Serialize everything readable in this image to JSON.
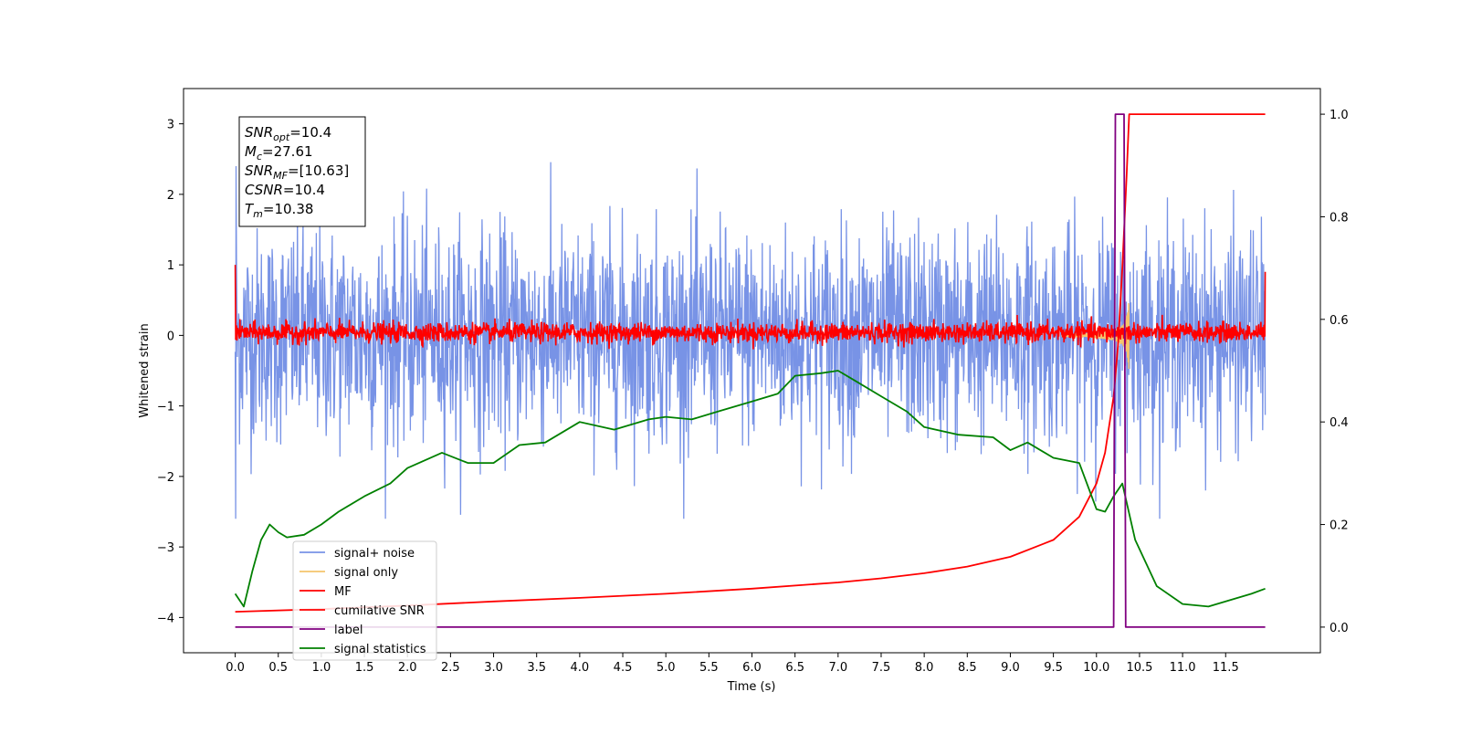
{
  "chart_data": {
    "type": "line",
    "xlabel": "Time (s)",
    "ylabel": "Whitened strain",
    "xlim": [
      -0.6,
      12.6
    ],
    "ylim": [
      -4.5,
      3.5
    ],
    "y2lim": [
      -0.05,
      1.05
    ],
    "x_ticks": [
      0.0,
      0.5,
      1.0,
      1.5,
      2.0,
      2.5,
      3.0,
      3.5,
      4.0,
      4.5,
      5.0,
      5.5,
      6.0,
      6.5,
      7.0,
      7.5,
      8.0,
      8.5,
      9.0,
      9.5,
      10.0,
      10.5,
      11.0,
      11.5
    ],
    "x_tick_labels": [
      "0.0",
      "0.5",
      "1.0",
      "1.5",
      "2.0",
      "2.5",
      "3.0",
      "3.5",
      "4.0",
      "4.5",
      "5.0",
      "5.5",
      "6.0",
      "6.5",
      "7.0",
      "7.5",
      "8.0",
      "8.5",
      "9.0",
      "9.5",
      "10.0",
      "10.5",
      "11.0",
      "11.5"
    ],
    "y_ticks": [
      -4,
      -3,
      -2,
      -1,
      0,
      1,
      2,
      3
    ],
    "y_tick_labels": [
      "−4",
      "−3",
      "−2",
      "−1",
      "0",
      "1",
      "2",
      "3"
    ],
    "y2_ticks": [
      0.0,
      0.2,
      0.4,
      0.6,
      0.8,
      1.0
    ],
    "y2_tick_labels": [
      "0.0",
      "0.2",
      "0.4",
      "0.6",
      "0.8",
      "1.0"
    ],
    "legend_position": "lower-left",
    "series": [
      {
        "name": "signal+ noise",
        "color": "#7893e6",
        "axis": "left",
        "description_band": {
          "t_range": [
            0.0,
            11.96
          ],
          "typical_range": [
            -1.6,
            1.6
          ],
          "extremes": [
            -2.6,
            2.8
          ]
        }
      },
      {
        "name": "signal only",
        "color": "#f5c46b",
        "axis": "left",
        "chirp": {
          "merger_time": 10.38,
          "peak_amplitude": 1.0
        }
      },
      {
        "name": "MF",
        "color": "#ff0000",
        "axis": "left",
        "band": {
          "t_range": [
            0.0,
            11.96
          ],
          "typical_range": [
            -0.15,
            0.25
          ]
        }
      },
      {
        "name": "cumilative SNR",
        "color": "#ff0000",
        "axis": "right",
        "x": [
          0.0,
          1.0,
          2.0,
          3.0,
          4.0,
          5.0,
          6.0,
          7.0,
          7.5,
          8.0,
          8.5,
          9.0,
          9.5,
          9.8,
          10.0,
          10.1,
          10.2,
          10.25,
          10.3,
          10.35,
          10.38,
          10.5,
          11.0,
          11.5,
          11.96
        ],
        "y": [
          0.03,
          0.035,
          0.042,
          0.05,
          0.057,
          0.065,
          0.075,
          0.087,
          0.095,
          0.105,
          0.118,
          0.137,
          0.17,
          0.215,
          0.28,
          0.34,
          0.45,
          0.55,
          0.7,
          0.88,
          1.0,
          1.0,
          1.0,
          1.0,
          1.0
        ]
      },
      {
        "name": "label",
        "color": "#800080",
        "axis": "right",
        "x": [
          0.0,
          10.2,
          10.22,
          10.32,
          10.34,
          11.96
        ],
        "y": [
          0.0,
          0.0,
          1.0,
          1.0,
          0.0,
          0.0
        ]
      },
      {
        "name": "signal statistics",
        "color": "#008000",
        "axis": "right",
        "x": [
          0.0,
          0.1,
          0.2,
          0.3,
          0.4,
          0.5,
          0.6,
          0.8,
          1.0,
          1.2,
          1.5,
          1.8,
          2.0,
          2.4,
          2.7,
          3.0,
          3.3,
          3.6,
          4.0,
          4.4,
          4.8,
          5.0,
          5.3,
          5.6,
          6.0,
          6.3,
          6.5,
          6.8,
          7.0,
          7.2,
          7.5,
          7.8,
          8.0,
          8.4,
          8.8,
          9.0,
          9.2,
          9.5,
          9.8,
          10.0,
          10.1,
          10.2,
          10.3,
          10.45,
          10.7,
          11.0,
          11.3,
          11.5,
          11.8,
          11.96
        ],
        "y": [
          0.065,
          0.04,
          0.11,
          0.17,
          0.2,
          0.185,
          0.175,
          0.18,
          0.2,
          0.225,
          0.255,
          0.28,
          0.31,
          0.34,
          0.32,
          0.32,
          0.355,
          0.36,
          0.4,
          0.385,
          0.405,
          0.41,
          0.405,
          0.42,
          0.44,
          0.455,
          0.49,
          0.495,
          0.5,
          0.48,
          0.45,
          0.42,
          0.39,
          0.375,
          0.37,
          0.345,
          0.36,
          0.33,
          0.32,
          0.23,
          0.225,
          0.255,
          0.28,
          0.17,
          0.08,
          0.045,
          0.04,
          0.05,
          0.065,
          0.075
        ]
      }
    ],
    "info_box": [
      {
        "base": "SNR",
        "sub": "opt",
        "value": "=10.4"
      },
      {
        "base": "M",
        "sub": "c",
        "value": "=27.61"
      },
      {
        "base": "SNR",
        "sub": "MF",
        "value": "=[10.63]"
      },
      {
        "base": "CSNR",
        "sub": "",
        "value": "=10.4"
      },
      {
        "base": "T",
        "sub": "m",
        "value": "=10.38"
      }
    ]
  }
}
